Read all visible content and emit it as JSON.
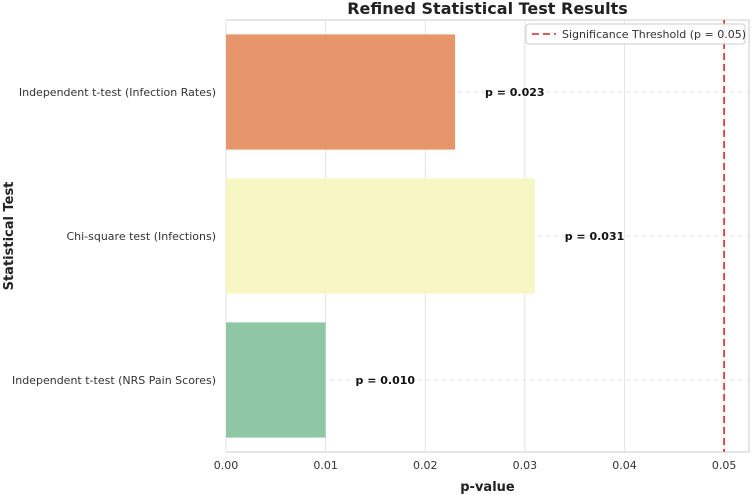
{
  "chart_data": {
    "type": "bar",
    "orientation": "horizontal",
    "title": "Refined Statistical Test Results",
    "xlabel": "p-value",
    "ylabel": "Statistical Test",
    "xlim": [
      0,
      0.0525
    ],
    "xticks": [
      0.0,
      0.01,
      0.02,
      0.03,
      0.04,
      0.05
    ],
    "xtick_labels": [
      "0.00",
      "0.01",
      "0.02",
      "0.03",
      "0.04",
      "0.05"
    ],
    "grid": true,
    "categories": [
      "Independent t-test (Infection Rates)",
      "Chi-square test (Infections)",
      "Independent t-test (NRS Pain Scores)"
    ],
    "values": [
      0.023,
      0.031,
      0.01
    ],
    "data_labels": [
      "p = 0.023",
      "p = 0.031",
      "p = 0.010"
    ],
    "bar_colors": [
      "#e7956a",
      "#f7f7c4",
      "#8fc6a5"
    ],
    "threshold": {
      "value": 0.05,
      "label": "Significance Threshold (p = 0.05)",
      "color": "#d62728"
    },
    "legend_position": "top-right"
  }
}
